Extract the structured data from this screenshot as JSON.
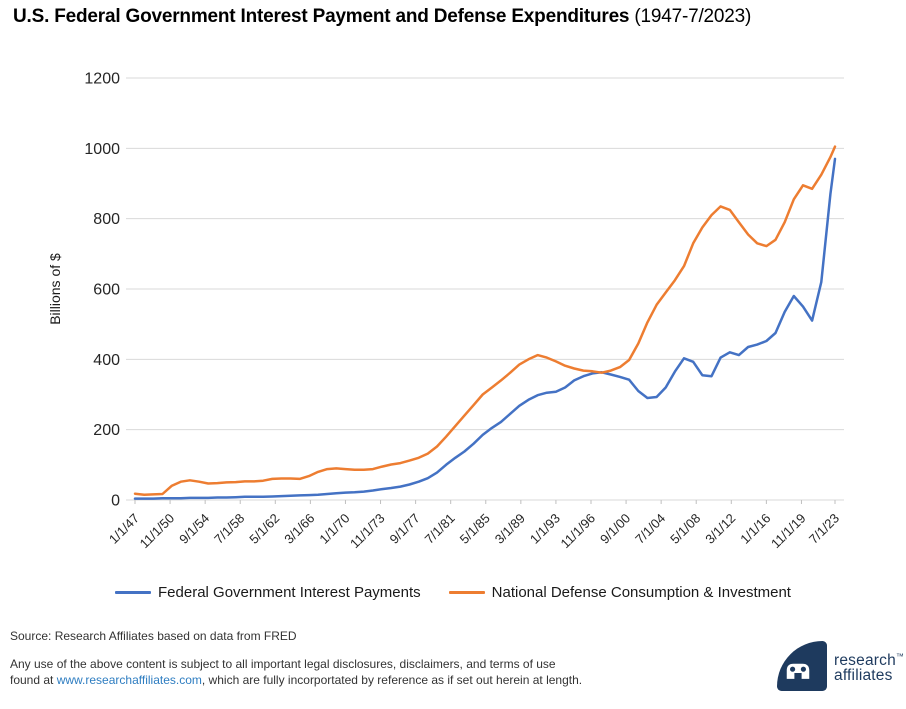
{
  "title": {
    "main": "U.S. Federal Government Interest Payment and Defense Expenditures",
    "range": " (1947-7/2023)"
  },
  "chart_data": {
    "type": "line",
    "title": "U.S. Federal Government Interest Payment and Defense Expenditures (1947-7/2023)",
    "xlabel": "",
    "ylabel": "Billions of $",
    "ylim": [
      0,
      1200
    ],
    "yticks": [
      0,
      200,
      400,
      600,
      800,
      1000,
      1200
    ],
    "grid": "horizontal",
    "legend_position": "bottom",
    "xticks": [
      {
        "label": "1/1/47",
        "x": 1947.0
      },
      {
        "label": "11/1/50",
        "x": 1950.833
      },
      {
        "label": "9/1/54",
        "x": 1954.667
      },
      {
        "label": "7/1/58",
        "x": 1958.5
      },
      {
        "label": "5/1/62",
        "x": 1962.333
      },
      {
        "label": "3/1/66",
        "x": 1966.167
      },
      {
        "label": "1/1/70",
        "x": 1970.0
      },
      {
        "label": "11/1/73",
        "x": 1973.833
      },
      {
        "label": "9/1/77",
        "x": 1977.667
      },
      {
        "label": "7/1/81",
        "x": 1981.5
      },
      {
        "label": "5/1/85",
        "x": 1985.333
      },
      {
        "label": "3/1/89",
        "x": 1989.167
      },
      {
        "label": "1/1/93",
        "x": 1993.0
      },
      {
        "label": "11/1/96",
        "x": 1996.833
      },
      {
        "label": "9/1/00",
        "x": 2000.667
      },
      {
        "label": "7/1/04",
        "x": 2004.5
      },
      {
        "label": "5/1/08",
        "x": 2008.333
      },
      {
        "label": "3/1/12",
        "x": 2012.167
      },
      {
        "label": "1/1/16",
        "x": 2016.0
      },
      {
        "label": "11/1/19",
        "x": 2019.833
      },
      {
        "label": "7/1/23",
        "x": 2023.5
      }
    ],
    "x": [
      1947,
      1948,
      1949,
      1950,
      1951,
      1952,
      1953,
      1954,
      1955,
      1956,
      1957,
      1958,
      1959,
      1960,
      1961,
      1962,
      1963,
      1964,
      1965,
      1966,
      1967,
      1968,
      1969,
      1970,
      1971,
      1972,
      1973,
      1974,
      1975,
      1976,
      1977,
      1978,
      1979,
      1980,
      1981,
      1982,
      1983,
      1984,
      1985,
      1986,
      1987,
      1988,
      1989,
      1990,
      1991,
      1992,
      1993,
      1994,
      1995,
      1996,
      1997,
      1998,
      1999,
      2000,
      2001,
      2002,
      2003,
      2004,
      2005,
      2006,
      2007,
      2008,
      2009,
      2010,
      2011,
      2012,
      2013,
      2014,
      2015,
      2016,
      2017,
      2018,
      2019,
      2020,
      2021,
      2022,
      2023,
      2023.5
    ],
    "series": [
      {
        "name": "Federal Government Interest Payments",
        "color": "#4472C4",
        "values": [
          4,
          4,
          4,
          5,
          5,
          5,
          6,
          6,
          6,
          7,
          7,
          8,
          9,
          9,
          9,
          10,
          11,
          12,
          13,
          14,
          15,
          17,
          19,
          21,
          22,
          24,
          27,
          31,
          34,
          38,
          44,
          52,
          62,
          78,
          100,
          120,
          138,
          160,
          185,
          205,
          222,
          245,
          268,
          285,
          298,
          305,
          308,
          320,
          340,
          352,
          360,
          363,
          357,
          350,
          342,
          310,
          290,
          293,
          320,
          365,
          403,
          393,
          355,
          352,
          405,
          420,
          412,
          435,
          442,
          452,
          475,
          535,
          580,
          550,
          510,
          620,
          870,
          970
        ]
      },
      {
        "name": "National Defense Consumption & Investment",
        "color": "#ED7D31",
        "values": [
          18,
          15,
          16,
          17,
          40,
          52,
          56,
          52,
          47,
          48,
          50,
          51,
          53,
          53,
          55,
          60,
          61,
          61,
          60,
          68,
          80,
          88,
          90,
          88,
          86,
          86,
          88,
          95,
          101,
          105,
          112,
          120,
          132,
          152,
          180,
          210,
          240,
          270,
          300,
          320,
          340,
          362,
          385,
          400,
          412,
          405,
          394,
          382,
          374,
          368,
          366,
          362,
          368,
          378,
          398,
          445,
          505,
          555,
          590,
          625,
          665,
          730,
          775,
          810,
          835,
          825,
          790,
          755,
          730,
          722,
          740,
          790,
          855,
          895,
          885,
          925,
          975,
          1005
        ]
      }
    ]
  },
  "footer": {
    "source": "Source: Research Affiliates based on data from FRED",
    "disclaimer_line1": "Any use of the above content is subject to all important legal disclosures, disclaimers, and terms of use",
    "disclaimer_line2_pre": "found at ",
    "disclaimer_link": "www.researchaffiliates.com",
    "disclaimer_line2_post": ", which are fully incorportated by reference as if set out herein at length."
  },
  "logo": {
    "line1": "research",
    "tm": "™",
    "line2": "affiliates"
  },
  "colors": {
    "interest_blue": "#4472C4",
    "defense_orange": "#ED7D31",
    "grid": "#D9D9D9",
    "tick": "#BFBFBF",
    "axis_text": "#262626",
    "link_blue": "#2E7DC1",
    "logo_navy": "#1E3A5E"
  }
}
